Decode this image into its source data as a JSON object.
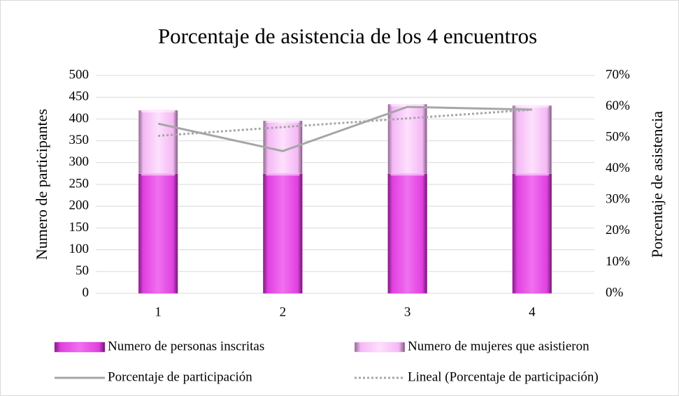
{
  "chart_data": {
    "type": "bar",
    "title": "Porcentaje de asistencia de los 4 encuentros",
    "y_label": "Numero de participantes",
    "y2_label": "Porcentaje de asistencia",
    "categories": [
      "1",
      "2",
      "3",
      "4"
    ],
    "ylim": [
      0,
      500
    ],
    "yticks": [
      0,
      50,
      100,
      150,
      200,
      250,
      300,
      350,
      400,
      450,
      500
    ],
    "y2lim": [
      0,
      70
    ],
    "y2ticks": [
      {
        "value": 0,
        "label": "0%"
      },
      {
        "value": 10,
        "label": "10%"
      },
      {
        "value": 20,
        "label": "20%"
      },
      {
        "value": 30,
        "label": "30%"
      },
      {
        "value": 40,
        "label": "40%"
      },
      {
        "value": 50,
        "label": "50%"
      },
      {
        "value": 60,
        "label": "60%"
      },
      {
        "value": 70,
        "label": "70%"
      }
    ],
    "grid": true,
    "stacked": true,
    "legend": "bottom",
    "series": [
      {
        "name": "Numero de personas inscritas",
        "type": "bar",
        "color": "#e040e0",
        "values": [
          275,
          275,
          275,
          275
        ]
      },
      {
        "name": "Numero de mujeres que asistieron",
        "type": "bar",
        "color": "#f9c6f9",
        "values": [
          145,
          121,
          159,
          156
        ]
      },
      {
        "name": "Porcentaje de participación",
        "type": "line",
        "axis": "y2",
        "color": "#a6a6a6",
        "values": [
          54.5,
          45.7,
          59.9,
          59
        ]
      },
      {
        "name": "Lineal (Porcentaje de participación)",
        "type": "line",
        "axis": "y2",
        "style": "dotted",
        "color": "#a6a6a6",
        "values": [
          50.6,
          53.4,
          56.2,
          59
        ]
      }
    ]
  }
}
